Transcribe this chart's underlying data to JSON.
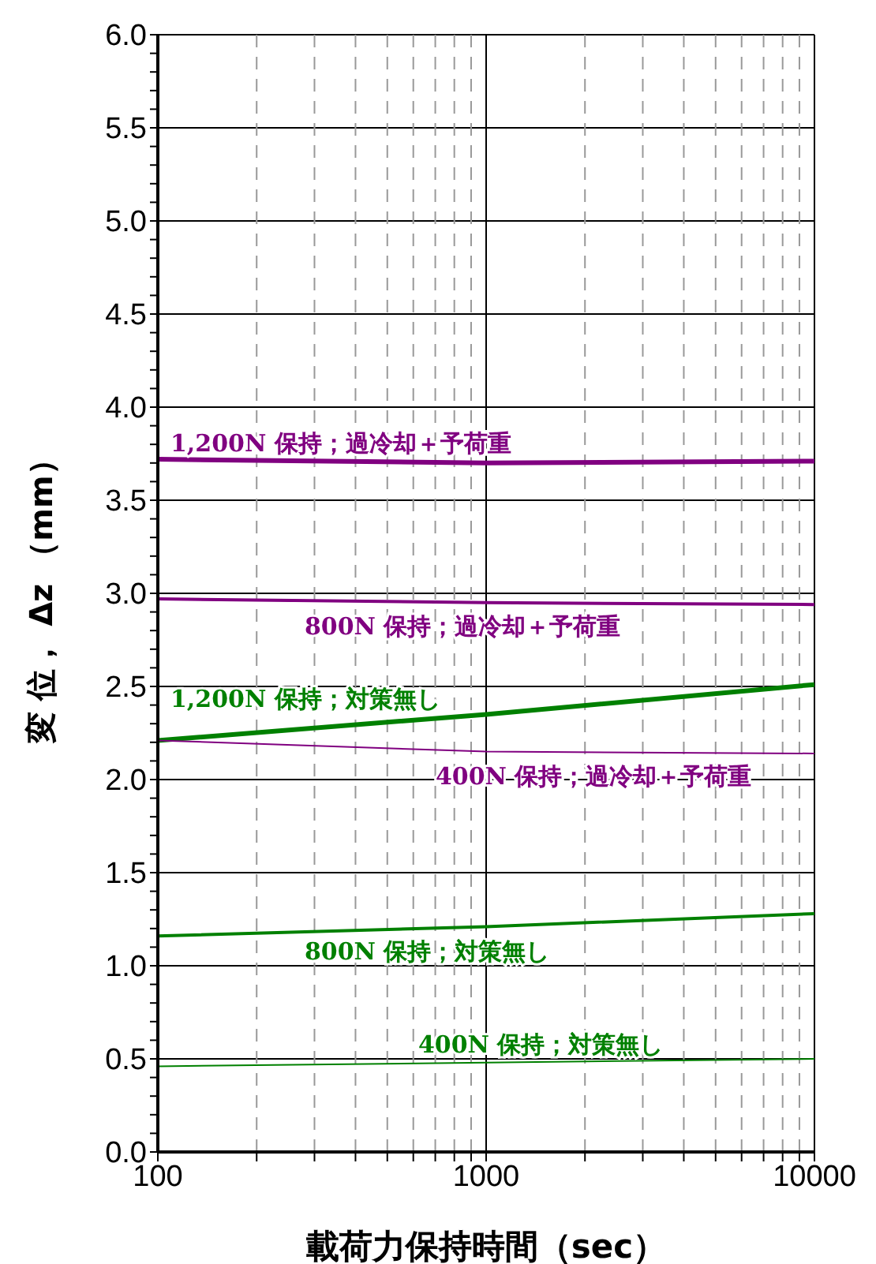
{
  "chart_data": {
    "type": "line",
    "xlabel": "載荷力保持時間（sec）",
    "ylabel": "変 位， Δz （mm）",
    "log": "x",
    "grid": true,
    "marker": "none",
    "line_style": "solid",
    "x": [
      100,
      1000,
      10000
    ],
    "xlim": [
      100,
      10000
    ],
    "xticks": [
      100,
      {
        "value": 200,
        "label": null
      },
      {
        "value": 300,
        "label": null
      },
      {
        "value": 400,
        "label": null
      },
      {
        "value": 500,
        "label": null
      },
      {
        "value": 600,
        "label": null
      },
      {
        "value": 700,
        "label": null
      },
      {
        "value": 800,
        "label": null
      },
      {
        "value": 900,
        "label": null
      },
      1000,
      {
        "value": 2000,
        "label": null
      },
      {
        "value": 3000,
        "label": null
      },
      {
        "value": 4000,
        "label": null
      },
      {
        "value": 5000,
        "label": null
      },
      {
        "value": 6000,
        "label": null
      },
      {
        "value": 7000,
        "label": null
      },
      {
        "value": 8000,
        "label": null
      },
      {
        "value": 9000,
        "label": null
      },
      10000
    ],
    "ylim": [
      0,
      6
    ],
    "yticks": [
      {
        "value": 0,
        "label": "0.0"
      },
      {
        "value": 0.1,
        "label": null
      },
      {
        "value": 0.2,
        "label": null
      },
      {
        "value": 0.3,
        "label": null
      },
      {
        "value": 0.4,
        "label": null
      },
      0.5,
      {
        "value": 0.6,
        "label": null
      },
      {
        "value": 0.7,
        "label": null
      },
      {
        "value": 0.8,
        "label": null
      },
      {
        "value": 0.9,
        "label": null
      },
      {
        "value": 1,
        "label": "1.0"
      },
      {
        "value": 1.1,
        "label": null
      },
      {
        "value": 1.2,
        "label": null
      },
      {
        "value": 1.3,
        "label": null
      },
      {
        "value": 1.4,
        "label": null
      },
      1.5,
      {
        "value": 1.6,
        "label": null
      },
      {
        "value": 1.7,
        "label": null
      },
      {
        "value": 1.8,
        "label": null
      },
      {
        "value": 1.9,
        "label": null
      },
      {
        "value": 2,
        "label": "2.0"
      },
      {
        "value": 2.1,
        "label": null
      },
      {
        "value": 2.2,
        "label": null
      },
      {
        "value": 2.3,
        "label": null
      },
      {
        "value": 2.4,
        "label": null
      },
      2.5,
      {
        "value": 2.6,
        "label": null
      },
      {
        "value": 2.7,
        "label": null
      },
      {
        "value": 2.8,
        "label": null
      },
      {
        "value": 2.9,
        "label": null
      },
      {
        "value": 3,
        "label": "3.0"
      },
      {
        "value": 3.1,
        "label": null
      },
      {
        "value": 3.2,
        "label": null
      },
      {
        "value": 3.3,
        "label": null
      },
      {
        "value": 3.4,
        "label": null
      },
      3.5,
      {
        "value": 3.6,
        "label": null
      },
      {
        "value": 3.7,
        "label": null
      },
      {
        "value": 3.8,
        "label": null
      },
      {
        "value": 3.9,
        "label": null
      },
      {
        "value": 4,
        "label": "4.0"
      },
      {
        "value": 4.1,
        "label": null
      },
      {
        "value": 4.2,
        "label": null
      },
      {
        "value": 4.3,
        "label": null
      },
      {
        "value": 4.4,
        "label": null
      },
      4.5,
      {
        "value": 4.6,
        "label": null
      },
      {
        "value": 4.7,
        "label": null
      },
      {
        "value": 4.8,
        "label": null
      },
      {
        "value": 4.9,
        "label": null
      },
      {
        "value": 5,
        "label": "5.0"
      },
      {
        "value": 5.1,
        "label": null
      },
      {
        "value": 5.2,
        "label": null
      },
      {
        "value": 5.3,
        "label": null
      },
      {
        "value": 5.4,
        "label": null
      },
      5.5,
      {
        "value": 5.6,
        "label": null
      },
      {
        "value": 5.7,
        "label": null
      },
      {
        "value": 5.8,
        "label": null
      },
      {
        "value": 5.9,
        "label": null
      },
      {
        "value": 6,
        "label": "6.0"
      }
    ],
    "series": [
      {
        "name": "1,200N 保持；過冷却＋予荷重",
        "color": "#800080",
        "values": [
          3.72,
          3.7,
          3.71
        ]
      },
      {
        "name": "800N 保持；過冷却＋予荷重",
        "color": "#800080",
        "values": [
          2.97,
          2.95,
          2.94
        ]
      },
      {
        "name": "1,200N 保持；対策無し",
        "color": "#008000",
        "values": [
          2.21,
          2.35,
          2.51
        ]
      },
      {
        "name": "400N 保持；過冷却＋予荷重",
        "color": "#800080",
        "values": [
          2.21,
          2.15,
          2.14
        ]
      },
      {
        "name": "800N 保持；対策無し",
        "color": "#008000",
        "values": [
          1.16,
          1.21,
          1.28
        ]
      },
      {
        "name": "400N 保持；対策無し",
        "color": "#008000",
        "values": [
          0.46,
          0.48,
          0.5
        ]
      }
    ]
  }
}
